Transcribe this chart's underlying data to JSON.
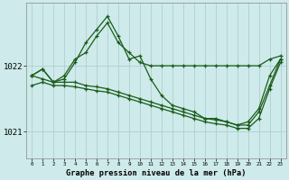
{
  "title": "Graphe pression niveau de la mer (hPa)",
  "bg_color": "#ceeaea",
  "grid_color": "#b0cfcf",
  "line_color": "#1a5c1a",
  "x_hours": [
    0,
    1,
    2,
    3,
    4,
    5,
    6,
    7,
    8,
    9,
    10,
    11,
    12,
    13,
    14,
    15,
    16,
    17,
    18,
    19,
    20,
    21,
    22,
    23
  ],
  "series_jagged": [
    1021.85,
    1021.95,
    1021.75,
    1021.8,
    1022.05,
    1022.35,
    1022.55,
    1022.75,
    1022.45,
    1022.1,
    1022.15,
    1021.8,
    1021.55,
    1021.4,
    1021.35,
    1021.3,
    1021.2,
    1021.2,
    1021.15,
    1021.1,
    1021.15,
    1021.35,
    1021.85,
    1022.1
  ],
  "series_high": [
    1021.85,
    1021.95,
    1021.75,
    1021.85,
    1022.1,
    1022.2,
    1022.45,
    1022.65,
    1022.35,
    1022.2,
    1022.05,
    1022.0,
    1022.0,
    1022.0,
    1022.0,
    1022.0,
    1022.0,
    1022.0,
    1022.0,
    1022.0,
    1022.0,
    1022.0,
    1022.1,
    1022.15
  ],
  "series_flat1": [
    1021.85,
    1021.8,
    1021.75,
    1021.75,
    1021.75,
    1021.7,
    1021.68,
    1021.65,
    1021.6,
    1021.55,
    1021.5,
    1021.45,
    1021.4,
    1021.35,
    1021.3,
    1021.25,
    1021.2,
    1021.18,
    1021.15,
    1021.1,
    1021.1,
    1021.3,
    1021.7,
    1022.1
  ],
  "series_flat2": [
    1021.7,
    1021.75,
    1021.7,
    1021.7,
    1021.68,
    1021.65,
    1021.62,
    1021.6,
    1021.55,
    1021.5,
    1021.45,
    1021.4,
    1021.35,
    1021.3,
    1021.25,
    1021.2,
    1021.15,
    1021.12,
    1021.1,
    1021.05,
    1021.05,
    1021.2,
    1021.65,
    1022.05
  ],
  "yticks": [
    1021,
    1022
  ],
  "ylim": [
    1020.6,
    1022.95
  ],
  "xlim": [
    -0.5,
    23.5
  ]
}
